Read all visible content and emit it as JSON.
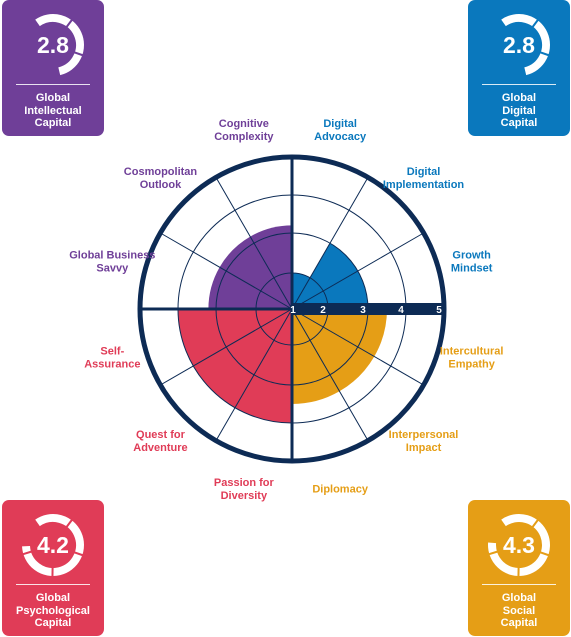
{
  "colors": {
    "intellectual": "#6f3f98",
    "digital": "#0a78bd",
    "social": "#e59e16",
    "psychological": "#e03c57",
    "navy": "#0d2b55"
  },
  "cards": {
    "intellectual": {
      "value": "2.8",
      "score": 2.8,
      "label": [
        "Global",
        "Intellectual",
        "Capital"
      ]
    },
    "digital": {
      "value": "2.8",
      "score": 2.8,
      "label": [
        "Global",
        "Digital",
        "Capital"
      ]
    },
    "psychological": {
      "value": "4.2",
      "score": 4.2,
      "label": [
        "Global",
        "Psychological",
        "Capital"
      ]
    },
    "social": {
      "value": "4.3",
      "score": 4.3,
      "label": [
        "Global",
        "Social",
        "Capital"
      ]
    }
  },
  "chart_data": {
    "type": "polar-area",
    "rmin": 1,
    "rmax": 5,
    "ticks": [
      "1",
      "2",
      "3",
      "4",
      "5"
    ],
    "segments": [
      {
        "label": [
          "Digital",
          "Advocacy"
        ],
        "value": 2.0,
        "group": "digital"
      },
      {
        "label": [
          "Digital",
          "Implementation"
        ],
        "value": 3.0,
        "group": "digital"
      },
      {
        "label": [
          "Growth",
          "Mindset"
        ],
        "value": 3.0,
        "group": "digital"
      },
      {
        "label": [
          "Intercultural",
          "Empathy"
        ],
        "value": 3.5,
        "group": "social"
      },
      {
        "label": [
          "Interpersonal",
          "Impact"
        ],
        "value": 3.5,
        "group": "social"
      },
      {
        "label": [
          "Diplomacy"
        ],
        "value": 3.5,
        "group": "social"
      },
      {
        "label": [
          "Passion for",
          "Diversity"
        ],
        "value": 4.0,
        "group": "psychological"
      },
      {
        "label": [
          "Quest for",
          "Adventure"
        ],
        "value": 4.0,
        "group": "psychological"
      },
      {
        "label": [
          "Self-",
          "Assurance"
        ],
        "value": 4.0,
        "group": "psychological"
      },
      {
        "label": [
          "Global Business",
          "Savvy"
        ],
        "value": 3.2,
        "group": "intellectual"
      },
      {
        "label": [
          "Cosmopolitan",
          "Outlook"
        ],
        "value": 3.2,
        "group": "intellectual"
      },
      {
        "label": [
          "Cognitive",
          "Complexity"
        ],
        "value": 3.2,
        "group": "intellectual"
      }
    ]
  }
}
